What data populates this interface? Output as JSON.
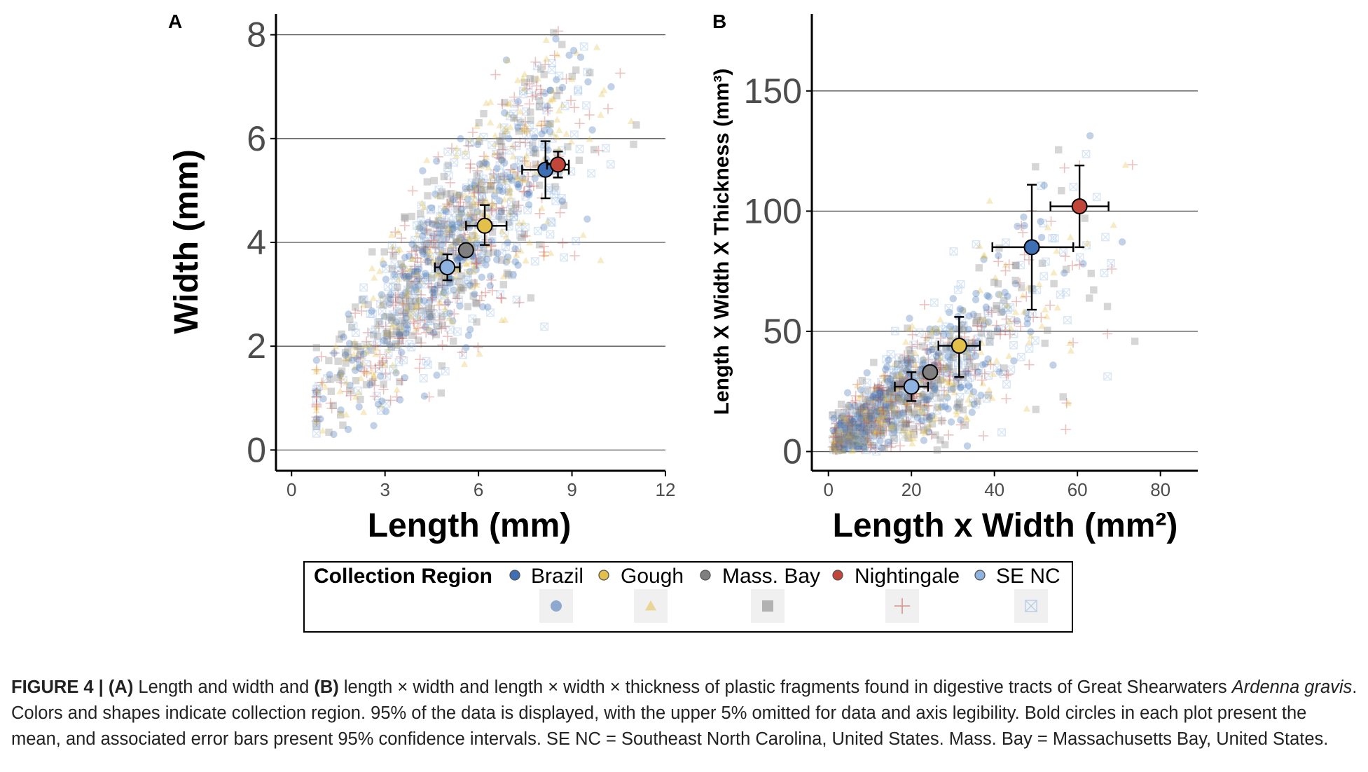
{
  "colors": {
    "Brazil": "#3e6fb5",
    "Gough": "#e3c04a",
    "Mass. Bay": "#7f7f7f",
    "Nightingale": "#c2453a",
    "SE NC": "#8fb3e0",
    "gridline": "#555555",
    "axis": "#000000"
  },
  "legend": {
    "title": "Collection Region",
    "entries": [
      {
        "name": "Brazil",
        "shape": "circle"
      },
      {
        "name": "Gough",
        "shape": "triangle"
      },
      {
        "name": "Mass. Bay",
        "shape": "square"
      },
      {
        "name": "Nightingale",
        "shape": "plus"
      },
      {
        "name": "SE NC",
        "shape": "square-x"
      }
    ]
  },
  "chart_data": [
    {
      "panel_label": "A",
      "type": "scatter",
      "xlabel": "Length (mm)",
      "ylabel": "Width (mm)",
      "xlim": [
        -0.5,
        12
      ],
      "ylim": [
        -0.4,
        8.4
      ],
      "xticks": [
        "0",
        "3",
        "6",
        "9",
        "12"
      ],
      "yticks": [
        "0",
        "2",
        "4",
        "6",
        "8"
      ],
      "grid": "horizontal",
      "means": [
        {
          "region": "SE NC",
          "x": 5.0,
          "y": 3.52,
          "xerr": [
            4.6,
            5.4
          ],
          "yerr": [
            3.27,
            3.77
          ]
        },
        {
          "region": "Mass. Bay",
          "x": 5.6,
          "y": 3.85,
          "xerr": [
            5.6,
            5.6
          ],
          "yerr": [
            3.85,
            3.85
          ]
        },
        {
          "region": "Gough",
          "x": 6.2,
          "y": 4.32,
          "xerr": [
            5.6,
            6.9
          ],
          "yerr": [
            3.95,
            4.72
          ]
        },
        {
          "region": "Brazil",
          "x": 8.15,
          "y": 5.4,
          "xerr": [
            7.4,
            8.9
          ],
          "yerr": [
            4.85,
            5.95
          ]
        },
        {
          "region": "Nightingale",
          "x": 8.55,
          "y": 5.5,
          "xerr": [
            8.2,
            8.9
          ],
          "yerr": [
            5.25,
            5.75
          ]
        }
      ]
    },
    {
      "panel_label": "B",
      "type": "scatter",
      "xlabel": "Length x Width (mm²)",
      "ylabel": "Length X Width X Thickness (mm³)",
      "xlim": [
        -4,
        89
      ],
      "ylim": [
        -8,
        182
      ],
      "xticks": [
        "0",
        "20",
        "40",
        "60",
        "80"
      ],
      "yticks": [
        "0",
        "50",
        "100",
        "150"
      ],
      "grid": "horizontal",
      "means": [
        {
          "region": "SE NC",
          "x": 20,
          "y": 27,
          "xerr": [
            16,
            24
          ],
          "yerr": [
            21,
            33
          ]
        },
        {
          "region": "Mass. Bay",
          "x": 24.5,
          "y": 33,
          "xerr": [
            24.5,
            24.5
          ],
          "yerr": [
            33,
            33
          ]
        },
        {
          "region": "Gough",
          "x": 31.5,
          "y": 44,
          "xerr": [
            26.5,
            36.5
          ],
          "yerr": [
            31,
            56
          ]
        },
        {
          "region": "Brazil",
          "x": 49,
          "y": 85,
          "xerr": [
            39.5,
            59
          ],
          "yerr": [
            59,
            111
          ]
        },
        {
          "region": "Nightingale",
          "x": 60.5,
          "y": 102,
          "xerr": [
            53.5,
            67.5
          ],
          "yerr": [
            85,
            119
          ]
        }
      ]
    }
  ],
  "caption": {
    "label": "FIGURE 4 |",
    "part_a": "(A)",
    "text_1": " Length and width and ",
    "part_b": "(B)",
    "text_2": " length × width and length × width × thickness of plastic fragments found in digestive tracts of Great Shearwaters ",
    "species": "Ardenna gravis",
    "text_3": ". Colors and shapes indicate collection region. 95% of the data is displayed, with the upper 5% omitted for data and axis legibility. Bold circles in each plot present the mean, and associated error bars present 95% confidence intervals. SE NC = Southeast North Carolina, United States. Mass. Bay = Massachusetts Bay, United States."
  }
}
